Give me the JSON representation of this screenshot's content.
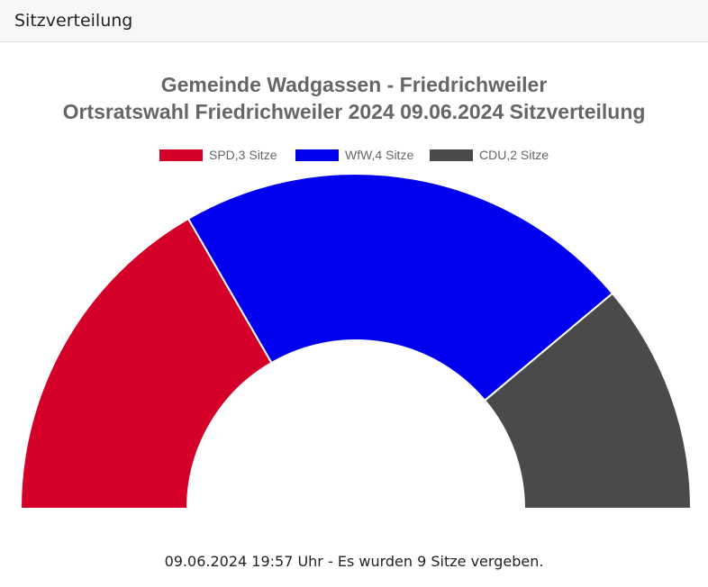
{
  "panel": {
    "title": "Sitzverteilung"
  },
  "chart_data": {
    "type": "pie",
    "variant": "half-doughnut",
    "title": [
      "Gemeinde Wadgassen - Friedrichweiler",
      "Ortsratswahl Friedrichweiler 2024 09.06.2024 Sitzverteilung"
    ],
    "legend_position": "top",
    "series": [
      {
        "name": "SPD",
        "label": "SPD,3 Sitze",
        "value": 3,
        "color": "#d50029"
      },
      {
        "name": "WfW",
        "label": "WfW,4 Sitze",
        "value": 4,
        "color": "#0000ee"
      },
      {
        "name": "CDU",
        "label": "CDU,2 Sitze",
        "value": 2,
        "color": "#4a4a4a"
      }
    ],
    "total": 9
  },
  "footer": {
    "text": "09.06.2024 19:57 Uhr - Es wurden 9 Sitze vergeben."
  }
}
